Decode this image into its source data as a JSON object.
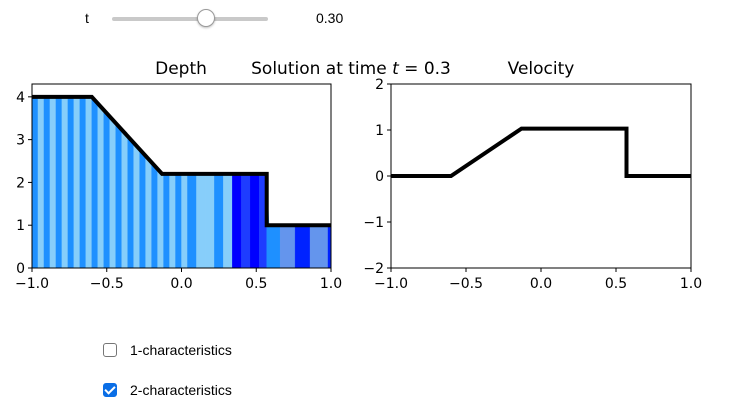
{
  "slider": {
    "label": "t",
    "value": 0.3,
    "value_text": "0.30",
    "min": 0,
    "max": 0.5
  },
  "figure": {
    "suptitle_text": "Solution at time ",
    "suptitle_var": "t",
    "suptitle_eq": " = 0.3"
  },
  "checkboxes": [
    {
      "label": "1-characteristics",
      "checked": false
    },
    {
      "label": "2-characteristics",
      "checked": true
    }
  ],
  "chart_data": [
    {
      "type": "line",
      "title": "Depth",
      "xlim": [
        -1.0,
        1.0
      ],
      "ylim": [
        0,
        4.3
      ],
      "xticks": [
        "−1.0",
        "−0.5",
        "0.0",
        "0.5",
        "1.0"
      ],
      "yticks": [
        "0",
        "1",
        "2",
        "3",
        "4"
      ],
      "x": [
        -1.0,
        -0.6,
        -0.13,
        0.57,
        0.57,
        1.0
      ],
      "y": [
        4.0,
        4.0,
        2.2,
        2.2,
        1.0,
        1.0
      ],
      "characteristic_bands": {
        "edges": [
          -1.0,
          -0.96,
          -0.92,
          -0.88,
          -0.84,
          -0.8,
          -0.76,
          -0.72,
          -0.68,
          -0.64,
          -0.6,
          -0.56,
          -0.52,
          -0.48,
          -0.44,
          -0.4,
          -0.36,
          -0.32,
          -0.28,
          -0.24,
          -0.2,
          -0.16,
          -0.12,
          -0.08,
          -0.04,
          0.0,
          0.04,
          0.1,
          0.16,
          0.22,
          0.28,
          0.34,
          0.4,
          0.46,
          0.52,
          0.57,
          0.66,
          0.76,
          0.86,
          0.98,
          1.0
        ],
        "colors": [
          "#1E90FF",
          "#87CEFA",
          "#1E90FF",
          "#87CEFA",
          "#1E90FF",
          "#87CEFA",
          "#1E90FF",
          "#87CEFA",
          "#1E90FF",
          "#87CEFA",
          "#1E90FF",
          "#87CEFA",
          "#1E90FF",
          "#87CEFA",
          "#1E90FF",
          "#87CEFA",
          "#1E90FF",
          "#87CEFA",
          "#1E90FF",
          "#87CEFA",
          "#1E90FF",
          "#87CEFA",
          "#1E90FF",
          "#87CEFA",
          "#1E90FF",
          "#87CEFA",
          "#1E90FF",
          "#87CEFA",
          "#87CEFA",
          "#1E90FF",
          "#87CEFA",
          "#0000FF",
          "#1E3CFF",
          "#0000FF",
          "#1E3CFF",
          "#1E90FF",
          "#6495ED",
          "#0022FF",
          "#6495ED",
          "#0022FF"
        ]
      }
    },
    {
      "type": "line",
      "title": "Velocity",
      "xlim": [
        -1.0,
        1.0
      ],
      "ylim": [
        -2,
        2
      ],
      "xticks": [
        "−1.0",
        "−0.5",
        "0.0",
        "0.5",
        "1.0"
      ],
      "yticks": [
        "−2",
        "−1",
        "0",
        "1",
        "2"
      ],
      "x": [
        -1.0,
        -0.6,
        -0.13,
        0.57,
        0.57,
        1.0
      ],
      "y": [
        0,
        0,
        1.03,
        1.03,
        0,
        0
      ]
    }
  ]
}
